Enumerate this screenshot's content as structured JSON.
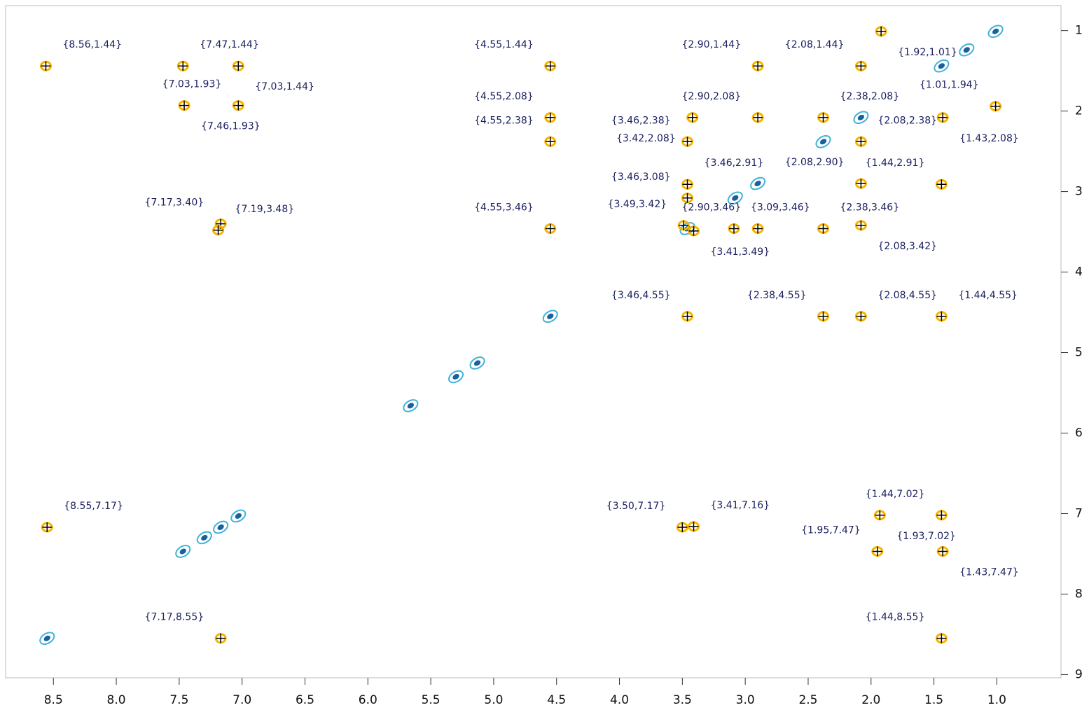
{
  "chart_data": {
    "type": "contour",
    "xlim": [
      8.88,
      0.49
    ],
    "ylim": [
      0.69,
      9.04
    ],
    "xticks": [
      8.5,
      {
        "value": 8,
        "label": "8.0"
      },
      7.5,
      {
        "value": 7,
        "label": "7.0"
      },
      6.5,
      {
        "value": 6,
        "label": "6.0"
      },
      5.5,
      {
        "value": 5,
        "label": "5.0"
      },
      4.5,
      {
        "value": 4,
        "label": "4.0"
      },
      3.5,
      {
        "value": 3,
        "label": "3.0"
      },
      2.5,
      {
        "value": 2,
        "label": "2.0"
      },
      1.5,
      {
        "value": 1,
        "label": "1.0"
      }
    ],
    "yticks": [
      1,
      2,
      3,
      4,
      5,
      6,
      7,
      8,
      9
    ],
    "cross_peak_color": "#f7b500",
    "diagonal_color": "#3fb3d6",
    "diagonal_peaks": [
      1.01,
      1.24,
      1.44,
      2.08,
      2.38,
      2.9,
      3.08,
      3.46,
      4.55,
      5.13,
      5.3,
      5.66,
      7.03,
      7.17,
      7.3,
      7.47,
      8.55
    ],
    "peaks": [
      {
        "label": "{8.56,1.44}",
        "x": 8.56,
        "y": 1.44
      },
      {
        "label": "{7.47,1.44}",
        "x": 7.47,
        "y": 1.44
      },
      {
        "label": "{7.03,1.44}",
        "x": 7.03,
        "y": 1.44
      },
      {
        "label": "{7.03,1.93}",
        "x": 7.03,
        "y": 1.93
      },
      {
        "label": "{7.46,1.93}",
        "x": 7.46,
        "y": 1.93
      },
      {
        "label": "{4.55,1.44}",
        "x": 4.55,
        "y": 1.44
      },
      {
        "label": "{2.90,1.44}",
        "x": 2.9,
        "y": 1.44
      },
      {
        "label": "{2.08,1.44}",
        "x": 2.08,
        "y": 1.44
      },
      {
        "label": "{1.92,1.01}",
        "x": 1.92,
        "y": 1.01
      },
      {
        "label": "{1.01,1.94}",
        "x": 1.01,
        "y": 1.94
      },
      {
        "label": "{4.55,2.08}",
        "x": 4.55,
        "y": 2.08
      },
      {
        "label": "{4.55,2.38}",
        "x": 4.55,
        "y": 2.38
      },
      {
        "label": "{2.90,2.08}",
        "x": 2.9,
        "y": 2.08
      },
      {
        "label": "{2.38,2.08}",
        "x": 2.38,
        "y": 2.08
      },
      {
        "label": "{2.08,2.38}",
        "x": 2.08,
        "y": 2.38
      },
      {
        "label": "{1.43,2.08}",
        "x": 1.43,
        "y": 2.08
      },
      {
        "label": "{3.46,2.38}",
        "x": 3.46,
        "y": 2.38
      },
      {
        "label": "{3.42,2.08}",
        "x": 3.42,
        "y": 2.08
      },
      {
        "label": "{3.46,2.91}",
        "x": 3.46,
        "y": 2.91
      },
      {
        "label": "{2.08,2.90}",
        "x": 2.08,
        "y": 2.9
      },
      {
        "label": "{1.44,2.91}",
        "x": 1.44,
        "y": 2.91
      },
      {
        "label": "{3.46,3.08}",
        "x": 3.46,
        "y": 3.08
      },
      {
        "label": "{7.17,3.40}",
        "x": 7.17,
        "y": 3.4
      },
      {
        "label": "{7.19,3.48}",
        "x": 7.19,
        "y": 3.48
      },
      {
        "label": "{4.55,3.46}",
        "x": 4.55,
        "y": 3.46
      },
      {
        "label": "{3.49,3.42}",
        "x": 3.49,
        "y": 3.42
      },
      {
        "label": "{2.90,3.46}",
        "x": 2.9,
        "y": 3.46
      },
      {
        "label": "{3.09,3.46}",
        "x": 3.09,
        "y": 3.46
      },
      {
        "label": "{2.38,3.46}",
        "x": 2.38,
        "y": 3.46
      },
      {
        "label": "{2.08,3.42}",
        "x": 2.08,
        "y": 3.42
      },
      {
        "label": "{3.41,3.49}",
        "x": 3.41,
        "y": 3.49
      },
      {
        "label": "{3.46,4.55}",
        "x": 3.46,
        "y": 4.55
      },
      {
        "label": "{2.38,4.55}",
        "x": 2.38,
        "y": 4.55
      },
      {
        "label": "{2.08,4.55}",
        "x": 2.08,
        "y": 4.55
      },
      {
        "label": "{1.44,4.55}",
        "x": 1.44,
        "y": 4.55
      },
      {
        "label": "{8.55,7.17}",
        "x": 8.55,
        "y": 7.17
      },
      {
        "label": "{3.50,7.17}",
        "x": 3.5,
        "y": 7.17
      },
      {
        "label": "{3.41,7.16}",
        "x": 3.41,
        "y": 7.16
      },
      {
        "label": "{1.44,7.02}",
        "x": 1.44,
        "y": 7.02
      },
      {
        "label": "{1.93,7.02}",
        "x": 1.93,
        "y": 7.02
      },
      {
        "label": "{1.95,7.47}",
        "x": 1.95,
        "y": 7.47
      },
      {
        "label": "{1.43,7.47}",
        "x": 1.43,
        "y": 7.47
      },
      {
        "label": "{7.17,8.55}",
        "x": 7.17,
        "y": 8.55
      },
      {
        "label": "{1.44,8.55}",
        "x": 1.44,
        "y": 8.55
      }
    ]
  }
}
